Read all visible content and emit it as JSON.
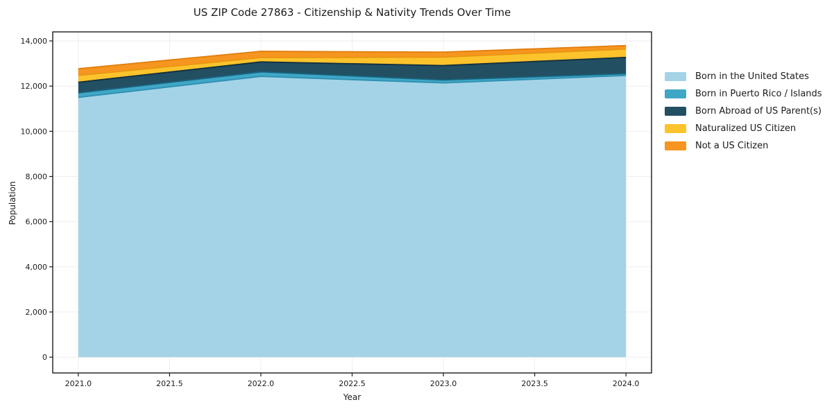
{
  "chart_data": {
    "type": "area",
    "stacked": true,
    "title": "US ZIP Code 27863 - Citizenship & Nativity Trends Over Time",
    "xlabel": "Year",
    "ylabel": "Population",
    "x": [
      2021,
      2022,
      2023,
      2024
    ],
    "series": [
      {
        "name": "Born in the United States",
        "color": "#A4D3E8",
        "edge": "#2E8FB0",
        "values": [
          11500,
          12430,
          12140,
          12470
        ]
      },
      {
        "name": "Born in Puerto Rico / Islands",
        "color": "#3FA6C6",
        "edge": "#17647E",
        "values": [
          200,
          200,
          130,
          80
        ]
      },
      {
        "name": "Born Abroad of US Parent(s)",
        "color": "#234F63",
        "edge": "#122F3D",
        "values": [
          470,
          440,
          640,
          720
        ]
      },
      {
        "name": "Naturalized US Citizen",
        "color": "#FCC32C",
        "edge": "#E89612",
        "values": [
          300,
          190,
          370,
          370
        ]
      },
      {
        "name": "Not a US Citizen",
        "color": "#F6951F",
        "edge": "#E07D0C",
        "values": [
          300,
          280,
          225,
          155
        ]
      }
    ],
    "xlim": [
      2020.86,
      2024.14
    ],
    "ylim": [
      -700,
      14400
    ],
    "xticks": {
      "values": [
        2021.0,
        2021.5,
        2022.0,
        2022.5,
        2023.0,
        2023.5,
        2024.0
      ],
      "labels": [
        "2021.0",
        "2021.5",
        "2022.0",
        "2022.5",
        "2023.0",
        "2023.5",
        "2024.0"
      ]
    },
    "yticks": {
      "values": [
        0,
        2000,
        4000,
        6000,
        8000,
        10000,
        12000,
        14000
      ],
      "labels": [
        "0",
        "2,000",
        "4,000",
        "6,000",
        "8,000",
        "10,000",
        "12,000",
        "14,000"
      ]
    },
    "grid": true,
    "legend_position": "right of plot, top",
    "colors": {
      "frame": "#1a1a1a",
      "gridline": "#eeeeee",
      "background": "#ffffff",
      "text": "#1a1a1a"
    }
  }
}
